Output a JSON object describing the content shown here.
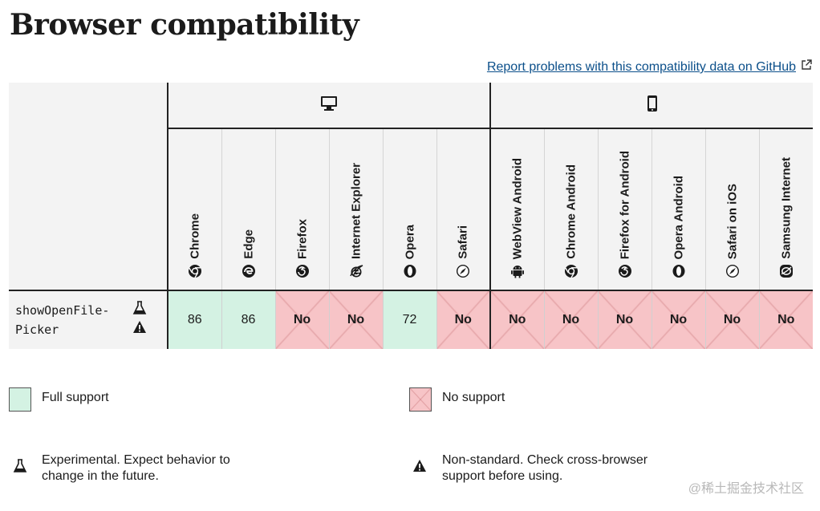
{
  "page": {
    "title": "Browser compatibility",
    "report_link": "Report problems with this compatibility data on GitHub"
  },
  "platforms": [
    {
      "name": "desktop",
      "icon": "desktop-icon"
    },
    {
      "name": "mobile",
      "icon": "mobile-icon"
    }
  ],
  "browsers": [
    {
      "name": "Chrome",
      "icon": "chrome-icon"
    },
    {
      "name": "Edge",
      "icon": "edge-icon"
    },
    {
      "name": "Firefox",
      "icon": "firefox-icon"
    },
    {
      "name": "Internet Explorer",
      "icon": "ie-icon"
    },
    {
      "name": "Opera",
      "icon": "opera-icon"
    },
    {
      "name": "Safari",
      "icon": "safari-icon"
    },
    {
      "name": "WebView Android",
      "icon": "android-icon"
    },
    {
      "name": "Chrome Android",
      "icon": "chrome-icon"
    },
    {
      "name": "Firefox for Android",
      "icon": "firefox-icon"
    },
    {
      "name": "Opera Android",
      "icon": "opera-icon"
    },
    {
      "name": "Safari on iOS",
      "icon": "safari-icon"
    },
    {
      "name": "Samsung Internet",
      "icon": "samsung-icon"
    }
  ],
  "feature": {
    "name_line1": "showOpenFile-",
    "name_line2": "Picker",
    "icons": [
      "experimental-icon",
      "non-standard-icon"
    ],
    "support": [
      "86",
      "86",
      "No",
      "No",
      "72",
      "No",
      "No",
      "No",
      "No",
      "No",
      "No",
      "No"
    ]
  },
  "colors": {
    "full_support": "#d4f2e3",
    "no_support": "#f7c4c7",
    "link": "#0b4f8a"
  },
  "legend": {
    "full_support": "Full support",
    "no_support": "No support",
    "experimental_line1": "Experimental. Expect behavior to",
    "experimental_line2": "change in the future.",
    "nonstandard_line1": "Non-standard. Check cross-browser",
    "nonstandard_line2": "support before using."
  },
  "watermark": "@稀土掘金技术社区"
}
